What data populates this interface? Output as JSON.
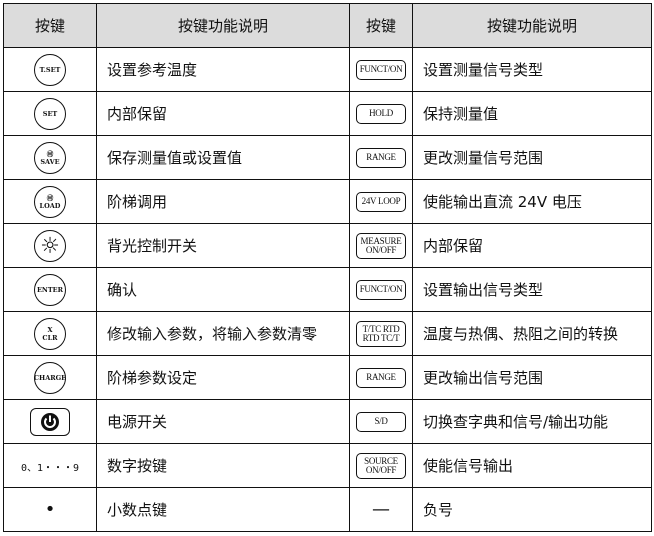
{
  "header": {
    "key_col_1": "按键",
    "desc_col_1": "按键功能说明",
    "key_col_2": "按键",
    "desc_col_2": "按键功能说明"
  },
  "rows": [
    {
      "left_key": {
        "shape": "circle",
        "lines": [
          "T.SET"
        ],
        "name": "tset-key-icon"
      },
      "left_desc": "设置参考温度",
      "right_key": {
        "shape": "rect",
        "lines": [
          "FUNCT/ON"
        ],
        "name": "funct-on-key-icon"
      },
      "right_desc": "设置测量信号类型"
    },
    {
      "left_key": {
        "shape": "circle",
        "lines": [
          "SET"
        ],
        "name": "set-key-icon"
      },
      "left_desc": "内部保留",
      "right_key": {
        "shape": "rect",
        "lines": [
          "HOLD"
        ],
        "name": "hold-key-icon"
      },
      "right_desc": "保持测量值"
    },
    {
      "left_key": {
        "shape": "circle",
        "lines": [
          "Ⓜ",
          "SAVE"
        ],
        "name": "m-save-key-icon"
      },
      "left_desc": "保存测量值或设置值",
      "right_key": {
        "shape": "rect",
        "lines": [
          "RANGE"
        ],
        "name": "range-key-icon"
      },
      "right_desc": "更改测量信号范围"
    },
    {
      "left_key": {
        "shape": "circle",
        "lines": [
          "Ⓜ",
          "LOAD"
        ],
        "name": "m-load-key-icon"
      },
      "left_desc": "阶梯调用",
      "right_key": {
        "shape": "rect",
        "lines": [
          "24V LOOP"
        ],
        "name": "24v-loop-key-icon"
      },
      "right_desc": "使能输出直流 24V 电压"
    },
    {
      "left_key": {
        "shape": "circle",
        "lines": [
          "☼"
        ],
        "name": "backlight-sun-icon"
      },
      "left_desc": "背光控制开关",
      "right_key": {
        "shape": "rect",
        "lines": [
          "MEASURE",
          "ON/OFF"
        ],
        "name": "measure-on-off-key-icon"
      },
      "right_desc": "内部保留"
    },
    {
      "left_key": {
        "shape": "circle",
        "lines": [
          "ENTER"
        ],
        "name": "enter-key-icon"
      },
      "left_desc": "确认",
      "right_key": {
        "shape": "rect",
        "lines": [
          "FUNCT/ON"
        ],
        "name": "funct-on-key-icon"
      },
      "right_desc": "设置输出信号类型"
    },
    {
      "left_key": {
        "shape": "circle",
        "lines": [
          "X",
          "CLR"
        ],
        "name": "clear-key-icon"
      },
      "left_desc": "修改输入参数，将输入参数清零",
      "right_key": {
        "shape": "rect",
        "lines": [
          "T/TC RTD",
          "RTD TC/T"
        ],
        "name": "t-tc-rtd-key-icon"
      },
      "right_desc": "温度与热偶、热阻之间的转换"
    },
    {
      "left_key": {
        "shape": "circle",
        "lines": [
          "CHARGE"
        ],
        "name": "charge-key-icon"
      },
      "left_desc": "阶梯参数设定",
      "right_key": {
        "shape": "rect",
        "lines": [
          "RANGE"
        ],
        "name": "range-key-icon"
      },
      "right_desc": "更改输出信号范围"
    },
    {
      "left_key": {
        "shape": "power",
        "lines": [],
        "name": "power-icon"
      },
      "left_desc": "电源开关",
      "right_key": {
        "shape": "rect",
        "lines": [
          "S/D"
        ],
        "name": "s-d-key-icon"
      },
      "right_desc": "切换查字典和信号/输出功能"
    },
    {
      "left_key": {
        "shape": "plain",
        "lines": [
          "0、1・・・9"
        ],
        "name": "digit-keys-label"
      },
      "left_desc": "数字按键",
      "right_key": {
        "shape": "rect",
        "lines": [
          "SOURCE",
          "ON/OFF"
        ],
        "name": "source-on-off-key-icon"
      },
      "right_desc": "使能信号输出"
    },
    {
      "left_key": {
        "shape": "dot",
        "lines": [
          "•"
        ],
        "name": "decimal-point-key-icon"
      },
      "left_desc": "小数点键",
      "right_key": {
        "shape": "dot",
        "lines": [
          "—"
        ],
        "name": "minus-key-icon"
      },
      "right_desc": "负号"
    }
  ]
}
